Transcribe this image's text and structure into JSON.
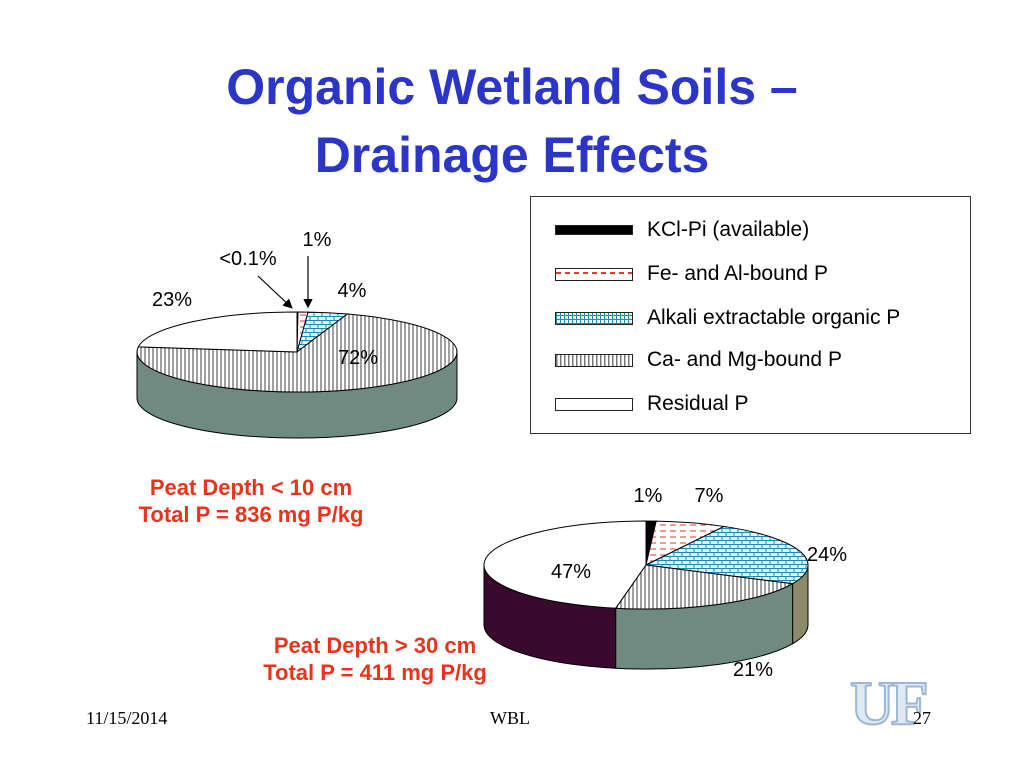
{
  "title": {
    "line1": "Organic Wetland Soils –",
    "line2": "Drainage Effects"
  },
  "legend": [
    {
      "label": "KCl-Pi (available)",
      "pattern": "solid-black"
    },
    {
      "label": "Fe- and Al-bound P",
      "pattern": "red-dashes"
    },
    {
      "label": "Alkali extractable organic P",
      "pattern": "blue-brick"
    },
    {
      "label": "Ca- and Mg-bound P",
      "pattern": "vertical-lines"
    },
    {
      "label": "Residual  P",
      "pattern": "white"
    }
  ],
  "chart_data": [
    {
      "type": "pie",
      "caption": [
        "Peat Depth < 10 cm",
        "Total P = 836 mg P/kg"
      ],
      "categories": [
        "KCl-Pi (available)",
        "Fe- and Al-bound P",
        "Alkali extractable organic P",
        "Ca- and Mg-bound P",
        "Residual  P"
      ],
      "values": [
        0.1,
        1,
        4,
        72,
        23
      ],
      "data_labels": [
        "<0.1%",
        "1%",
        "4%",
        "72%",
        "23%"
      ]
    },
    {
      "type": "pie",
      "caption": [
        "Peat Depth > 30 cm",
        "Total P = 411 mg P/kg"
      ],
      "categories": [
        "KCl-Pi (available)",
        "Fe- and Al-bound P",
        "Alkali extractable organic P",
        "Ca- and Mg-bound P",
        "Residual  P"
      ],
      "values": [
        1,
        7,
        24,
        21,
        47
      ],
      "data_labels": [
        "1%",
        "7%",
        "24%",
        "21%",
        "47%"
      ]
    }
  ],
  "colors": {
    "title": "#2b35c8",
    "caption": "#e8341c",
    "side_gray": "#6f8a80",
    "side_dark": "#3a0a2e",
    "side_olive": "#8c8a6a"
  },
  "footer": {
    "date": "11/15/2014",
    "center": "WBL",
    "page": "27"
  },
  "logo": {
    "text": "UF"
  }
}
